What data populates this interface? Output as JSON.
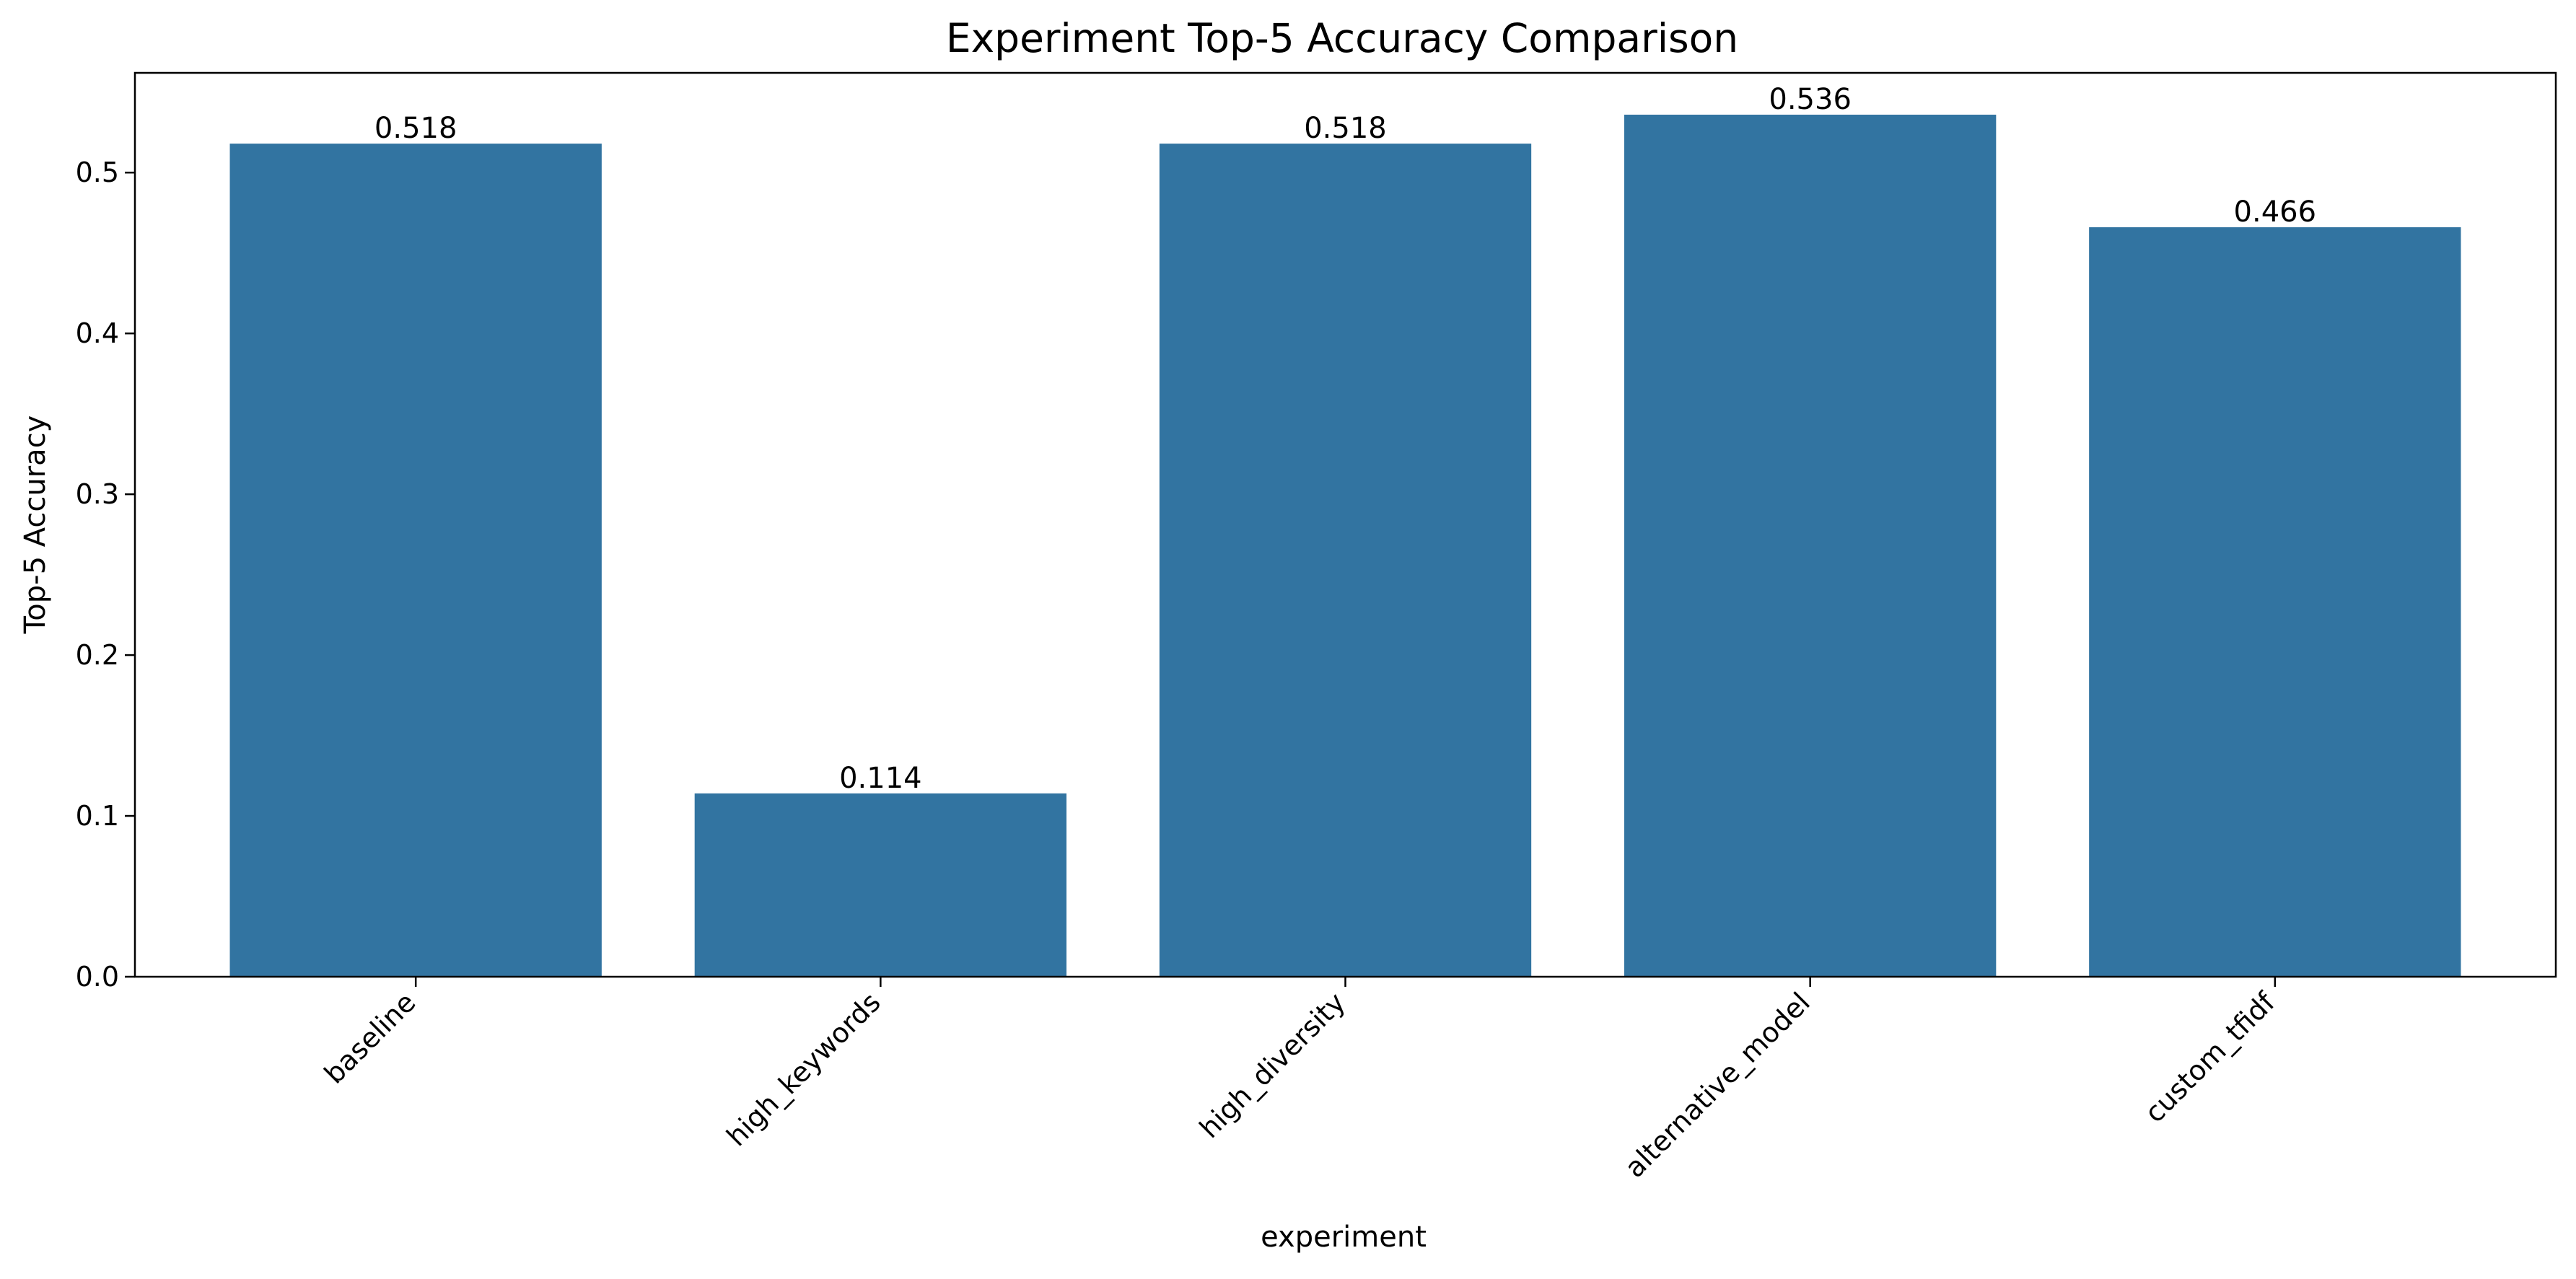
{
  "chart_data": {
    "type": "bar",
    "title": "Experiment Top-5 Accuracy Comparison",
    "xlabel": "experiment",
    "ylabel": "Top-5 Accuracy",
    "categories": [
      "baseline",
      "high_keywords",
      "high_diversity",
      "alternative_model",
      "custom_tfidf"
    ],
    "values": [
      0.518,
      0.114,
      0.518,
      0.536,
      0.466
    ],
    "value_labels": [
      "0.518",
      "0.114",
      "0.518",
      "0.536",
      "0.466"
    ],
    "ylim": [
      0,
      0.562
    ],
    "yticks": [
      0.0,
      0.1,
      0.2,
      0.3,
      0.4,
      0.5
    ],
    "ytick_labels": [
      "0.0",
      "0.1",
      "0.2",
      "0.3",
      "0.4",
      "0.5"
    ],
    "grid": false,
    "bar_color": "#3274a1"
  }
}
